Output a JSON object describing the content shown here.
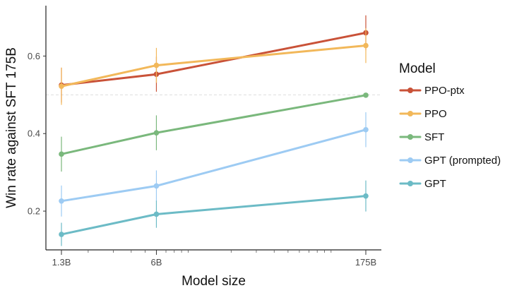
{
  "chart_data": {
    "type": "line",
    "xlabel": "Model size",
    "ylabel": "Win rate against SFT 175B",
    "x_scale": "log",
    "categories": [
      "1.3B",
      "6B",
      "175B"
    ],
    "x_values": [
      1.3,
      6,
      175
    ],
    "x_ticks": [
      "1.3B",
      "6B",
      "175B"
    ],
    "ylim": [
      0.1,
      0.73
    ],
    "y_ticks": [
      0.2,
      0.4,
      0.6
    ],
    "reference_line": 0.5,
    "legend_title": "Model",
    "legend_position": "right",
    "series": [
      {
        "name": "PPO-ptx",
        "color": "#c95238",
        "values": [
          0.525,
          0.553,
          0.66
        ],
        "error": [
          0.045,
          0.045,
          0.045
        ]
      },
      {
        "name": "PPO",
        "color": "#f2b85a",
        "values": [
          0.522,
          0.576,
          0.627
        ],
        "error": [
          0.048,
          0.045,
          0.045
        ]
      },
      {
        "name": "SFT",
        "color": "#7ab87c",
        "values": [
          0.347,
          0.402,
          0.499
        ],
        "error": [
          0.045,
          0.045,
          0.0
        ]
      },
      {
        "name": "GPT (prompted)",
        "color": "#9dcbf3",
        "values": [
          0.226,
          0.265,
          0.41
        ],
        "error": [
          0.04,
          0.04,
          0.045
        ]
      },
      {
        "name": "GPT",
        "color": "#6cbbc6",
        "values": [
          0.14,
          0.192,
          0.239
        ],
        "error": [
          0.03,
          0.035,
          0.04
        ]
      }
    ]
  }
}
